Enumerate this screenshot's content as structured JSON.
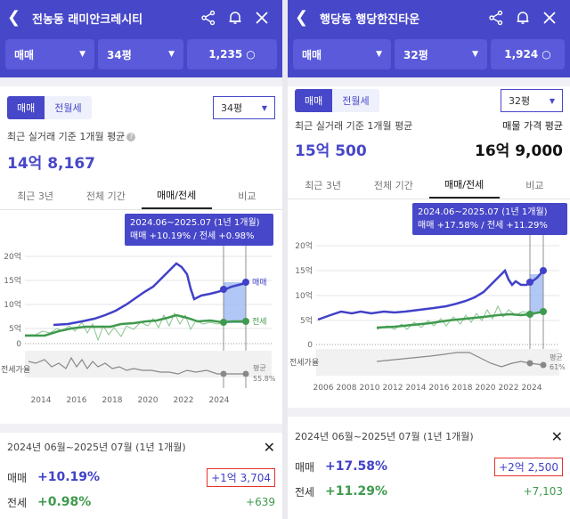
{
  "left": {
    "title": "전농동 래미안크레시티",
    "filter_trade": "매매",
    "filter_size": "34평",
    "count": "1,235",
    "seg_on": "매매",
    "seg_off": "전월세",
    "pyeong": "34평",
    "avg_label": "최근 실거래 기준 1개월 평균",
    "avg_value": "14억 8,167",
    "tabs": [
      "최근 3년",
      "전체 기간",
      "매매/전세",
      "비교"
    ],
    "tooltip_line1": "2024.06~2025.07 (1년 1개월)",
    "tooltip_line2": "매매 +10.19%  /  전세 +0.98%",
    "y_labels": [
      "20억",
      "15억",
      "10억",
      "5억",
      "0"
    ],
    "x_labels": [
      "2014",
      "2016",
      "2018",
      "2020",
      "2022",
      "2024"
    ],
    "legend_sale": "매매",
    "legend_jeonse": "전세",
    "ratio_label": "전세가율",
    "ratio_avg": "평균",
    "ratio_value": "55.8%",
    "period": "2024년 06월~2025년 07월 (1년 1개월)",
    "sale_label": "매매",
    "sale_pct": "+10.19%",
    "sale_amt": "+1억 3,704",
    "jeonse_label": "전세",
    "jeonse_pct": "+0.98%",
    "jeonse_amt": "+639"
  },
  "right": {
    "title": "행당동 행당한진타운",
    "filter_trade": "매매",
    "filter_size": "32평",
    "count": "1,924",
    "seg_on": "매매",
    "seg_off": "전월세",
    "pyeong": "32평",
    "avg_label": "최근 실거래 기준 1개월 평균",
    "avg_value": "15억 500",
    "ask_label": "매물 가격 평균",
    "ask_value": "16억 9,000",
    "tabs": [
      "최근 3년",
      "전체 기간",
      "매매/전세",
      "비교"
    ],
    "tooltip_line1": "2024.06~2025.07 (1년 1개월)",
    "tooltip_line2": "매매 +17.58%  /  전세 +11.29%",
    "y_labels": [
      "20억",
      "15억",
      "10억",
      "5억",
      "0"
    ],
    "x_labels": [
      "2006",
      "2008",
      "2010",
      "2012",
      "2014",
      "2016",
      "2018",
      "2020",
      "2022",
      "2024"
    ],
    "ratio_label": "전세가율",
    "ratio_avg": "평균",
    "ratio_value": "61%",
    "period": "2024년 06월~2025년 07월 (1년 1개월)",
    "sale_label": "매매",
    "sale_pct": "+17.58%",
    "sale_amt": "+2억 2,500",
    "jeonse_label": "전세",
    "jeonse_pct": "+11.29%",
    "jeonse_amt": "+7,103"
  },
  "colors": {
    "header": "#4747c9",
    "sale": "#4141c8",
    "jeonse": "#3f9a4d",
    "highlight": "#e5322c"
  },
  "icons": [
    "back-arrow-icon",
    "share-icon",
    "bell-icon",
    "close-icon",
    "search-icon",
    "chevron-down-icon",
    "question-icon"
  ]
}
